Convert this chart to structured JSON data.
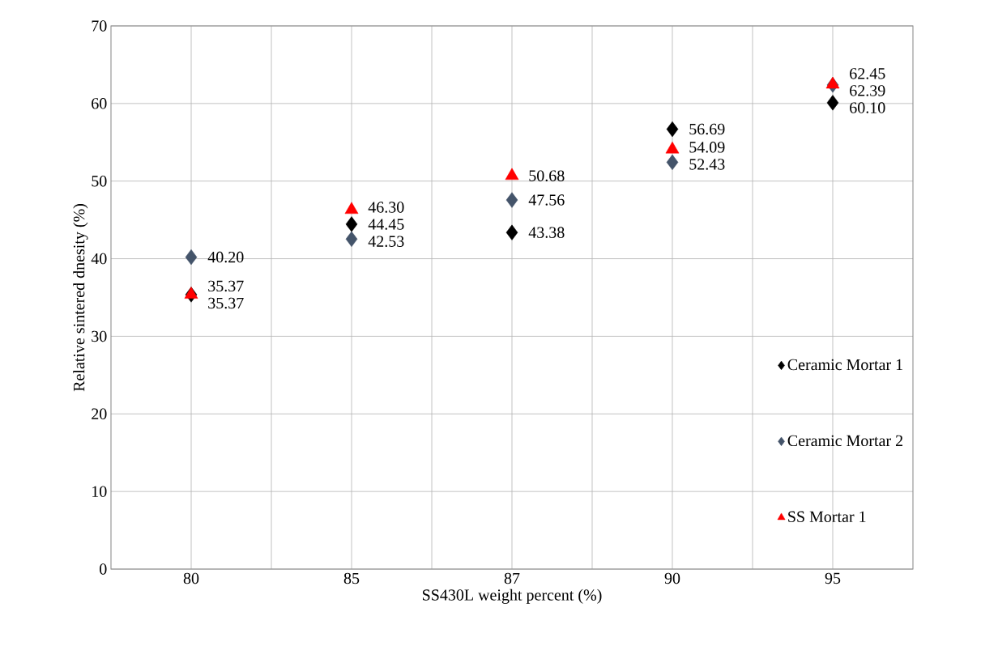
{
  "chart_data": {
    "type": "scatter",
    "xlabel": "SS430L weight percent (%)",
    "ylabel": "Relative sintered dnesity (%)",
    "categories": [
      "80",
      "85",
      "87",
      "90",
      "95"
    ],
    "ylim": [
      0,
      70
    ],
    "yticks": [
      0,
      10,
      20,
      30,
      40,
      50,
      60,
      70
    ],
    "grid": true,
    "legend": "right",
    "series": [
      {
        "name": "Ceramic Mortar 1",
        "color": "#000000",
        "marker": "diamond",
        "values": [
          35.37,
          44.45,
          43.38,
          56.69,
          60.1
        ],
        "value_labels": [
          "35.37",
          "44.45",
          "43.38",
          "56.69",
          "60.10"
        ]
      },
      {
        "name": "Ceramic Mortar 2",
        "color": "#44546a",
        "marker": "diamond",
        "values": [
          40.2,
          42.53,
          47.56,
          52.43,
          62.39
        ],
        "value_labels": [
          "40.20",
          "42.53",
          "47.56",
          "52.43",
          "62.39"
        ]
      },
      {
        "name": "SS Mortar 1",
        "color": "#ff0000",
        "marker": "triangle",
        "values": [
          35.37,
          46.3,
          50.68,
          54.09,
          62.45
        ],
        "value_labels": [
          "35.37",
          "46.30",
          "50.68",
          "54.09",
          "62.45"
        ]
      }
    ]
  }
}
